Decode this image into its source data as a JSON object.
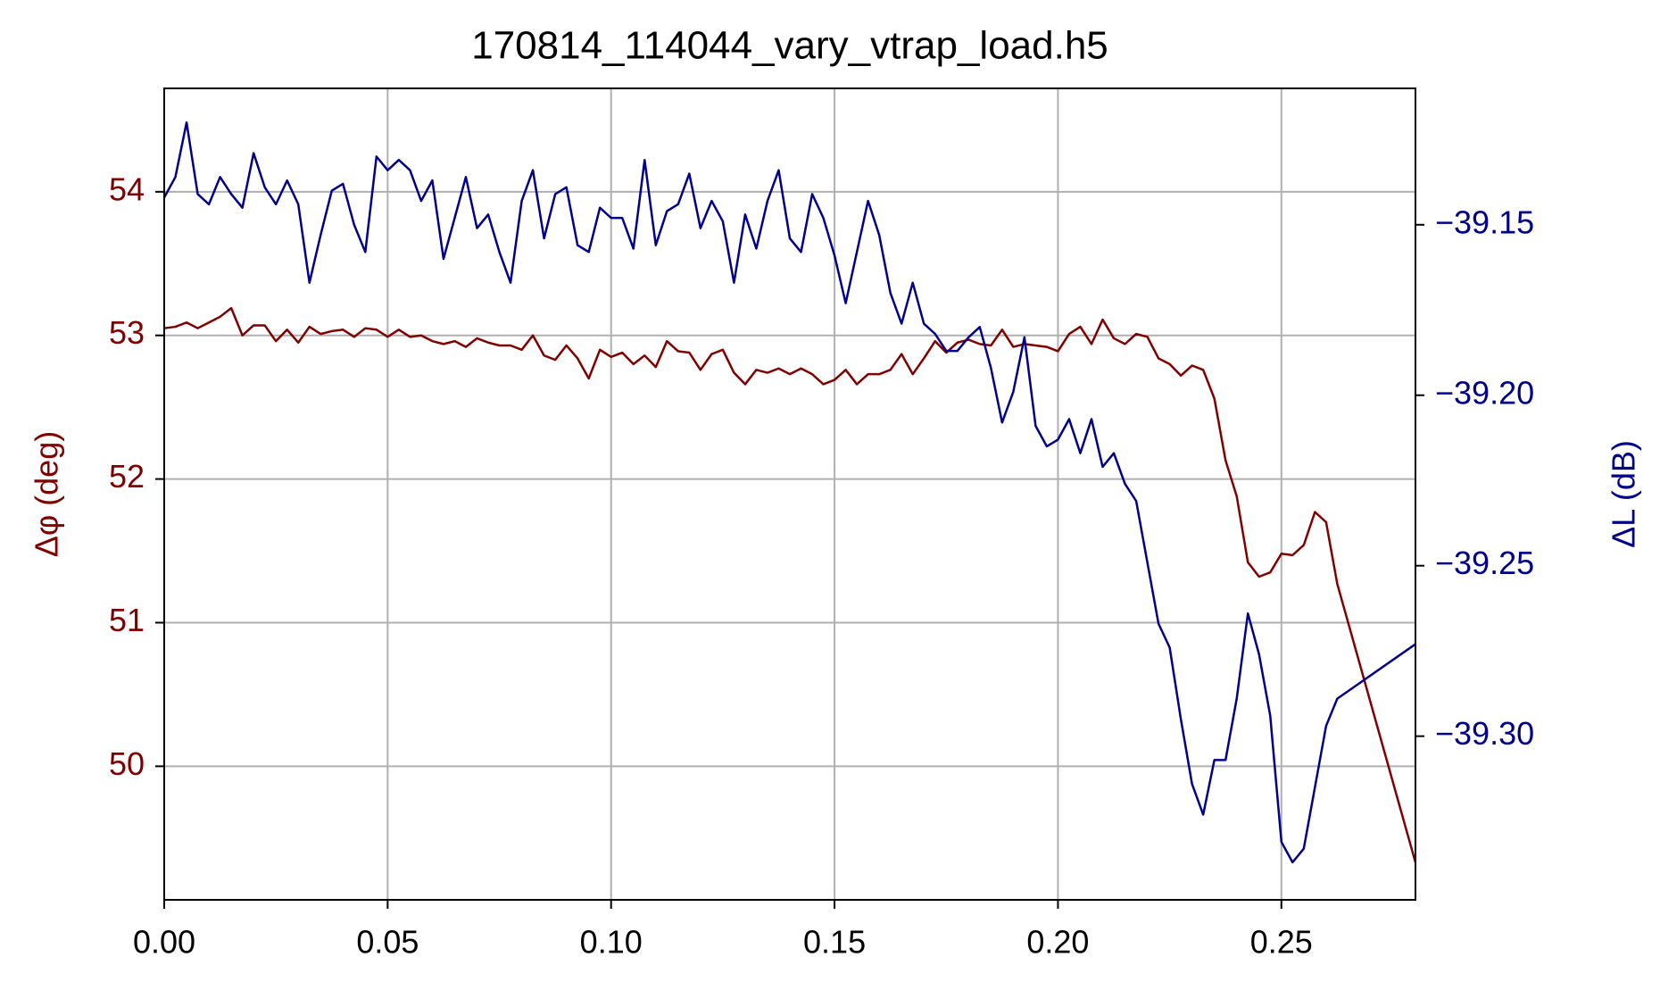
{
  "chart_data": {
    "type": "line",
    "title": "170814_114044_vary_vtrap_load.h5",
    "y_label": "Δφ (deg)",
    "y2_label": "ΔL (dB)",
    "x": [
      0,
      0.0025,
      0.005,
      0.0075,
      0.01,
      0.0125,
      0.015,
      0.0175,
      0.02,
      0.0225,
      0.025,
      0.0275,
      0.03,
      0.0325,
      0.035,
      0.0375,
      0.04,
      0.0425,
      0.045,
      0.0475,
      0.05,
      0.0525,
      0.055,
      0.0575,
      0.06,
      0.0625,
      0.065,
      0.0675,
      0.07,
      0.0725,
      0.075,
      0.0775,
      0.08,
      0.0825,
      0.085,
      0.0875,
      0.09,
      0.0925,
      0.095,
      0.0975,
      0.1,
      0.1025,
      0.105,
      0.1075,
      0.11,
      0.1125,
      0.115,
      0.1175,
      0.12,
      0.1225,
      0.125,
      0.1275,
      0.13,
      0.1325,
      0.135,
      0.1375,
      0.14,
      0.1425,
      0.145,
      0.1475,
      0.15,
      0.1525,
      0.155,
      0.1575,
      0.16,
      0.1625,
      0.165,
      0.1675,
      0.17,
      0.1725,
      0.175,
      0.1775,
      0.18,
      0.1825,
      0.185,
      0.1875,
      0.19,
      0.1925,
      0.195,
      0.1975,
      0.2,
      0.2025,
      0.205,
      0.2075,
      0.21,
      0.2125,
      0.215,
      0.2175,
      0.22,
      0.2225,
      0.225,
      0.2275,
      0.23,
      0.2325,
      0.235,
      0.2375,
      0.24,
      0.2425,
      0.245,
      0.2475,
      0.25,
      0.2525,
      0.255,
      0.2575,
      0.26,
      0.2625,
      0.28
    ],
    "series": [
      {
        "name": "Δφ",
        "color": "#800000",
        "axis": "y",
        "values": [
          53.05,
          53.06,
          53.09,
          53.05,
          53.09,
          53.13,
          53.19,
          53.0,
          53.07,
          53.07,
          52.96,
          53.04,
          52.95,
          53.06,
          53.01,
          53.03,
          53.04,
          52.99,
          53.05,
          53.04,
          52.99,
          53.04,
          52.99,
          53.0,
          52.96,
          52.94,
          52.96,
          52.92,
          52.98,
          52.95,
          52.93,
          52.93,
          52.9,
          53.0,
          52.86,
          52.83,
          52.93,
          52.84,
          52.7,
          52.9,
          52.85,
          52.88,
          52.8,
          52.86,
          52.78,
          52.96,
          52.89,
          52.88,
          52.76,
          52.87,
          52.9,
          52.74,
          52.66,
          52.76,
          52.74,
          52.77,
          52.73,
          52.77,
          52.73,
          52.66,
          52.69,
          52.76,
          52.66,
          52.73,
          52.73,
          52.76,
          52.87,
          52.73,
          52.84,
          52.96,
          52.88,
          52.95,
          52.97,
          52.94,
          52.93,
          53.04,
          52.92,
          52.94,
          52.93,
          52.92,
          52.89,
          53.01,
          53.06,
          52.94,
          53.11,
          52.98,
          52.94,
          53.01,
          52.99,
          52.84,
          52.8,
          52.72,
          52.79,
          52.76,
          52.56,
          52.13,
          51.88,
          51.42,
          51.32,
          51.35,
          51.48,
          51.47,
          51.54,
          51.77,
          51.7,
          51.27,
          49.33
        ]
      },
      {
        "name": "ΔL",
        "color": "#00008b",
        "axis": "y2",
        "values": [
          -39.142,
          -39.136,
          -39.12,
          -39.141,
          -39.144,
          -39.136,
          -39.141,
          -39.145,
          -39.129,
          -39.139,
          -39.144,
          -39.137,
          -39.144,
          -39.167,
          -39.153,
          -39.14,
          -39.138,
          -39.15,
          -39.158,
          -39.13,
          -39.134,
          -39.131,
          -39.134,
          -39.143,
          -39.137,
          -39.16,
          -39.148,
          -39.136,
          -39.151,
          -39.147,
          -39.158,
          -39.167,
          -39.143,
          -39.134,
          -39.154,
          -39.141,
          -39.139,
          -39.156,
          -39.158,
          -39.145,
          -39.148,
          -39.148,
          -39.157,
          -39.131,
          -39.156,
          -39.146,
          -39.144,
          -39.135,
          -39.151,
          -39.143,
          -39.149,
          -39.167,
          -39.147,
          -39.157,
          -39.143,
          -39.134,
          -39.154,
          -39.158,
          -39.141,
          -39.148,
          -39.159,
          -39.173,
          -39.158,
          -39.143,
          -39.153,
          -39.17,
          -39.179,
          -39.167,
          -39.179,
          -39.182,
          -39.187,
          -39.187,
          -39.183,
          -39.18,
          -39.192,
          -39.208,
          -39.199,
          -39.183,
          -39.209,
          -39.215,
          -39.213,
          -39.207,
          -39.217,
          -39.207,
          -39.221,
          -39.217,
          -39.226,
          -39.231,
          -39.249,
          -39.267,
          -39.274,
          -39.295,
          -39.314,
          -39.323,
          -39.307,
          -39.307,
          -39.289,
          -39.264,
          -39.276,
          -39.294,
          -39.331,
          -39.337,
          -39.333,
          -39.315,
          -39.297,
          -39.289,
          -39.273
        ]
      }
    ],
    "xlim": [
      0,
      0.28
    ],
    "ylim": [
      49.07,
      54.72
    ],
    "y2lim": [
      -39.348,
      -39.11
    ],
    "xticks": [
      {
        "value": 0,
        "label": "0.00"
      },
      {
        "value": 0.05,
        "label": "0.05"
      },
      {
        "value": 0.1,
        "label": "0.10"
      },
      {
        "value": 0.15,
        "label": "0.15"
      },
      {
        "value": 0.2,
        "label": "0.20"
      },
      {
        "value": 0.25,
        "label": "0.25"
      }
    ],
    "yticks": [
      50,
      51,
      52,
      53,
      54
    ],
    "y2ticks": [
      {
        "value": -39.15,
        "label": "−39.15"
      },
      {
        "value": -39.2,
        "label": "−39.20"
      },
      {
        "value": -39.25,
        "label": "−39.25"
      },
      {
        "value": -39.3,
        "label": "−39.30"
      }
    ],
    "grid": true
  }
}
